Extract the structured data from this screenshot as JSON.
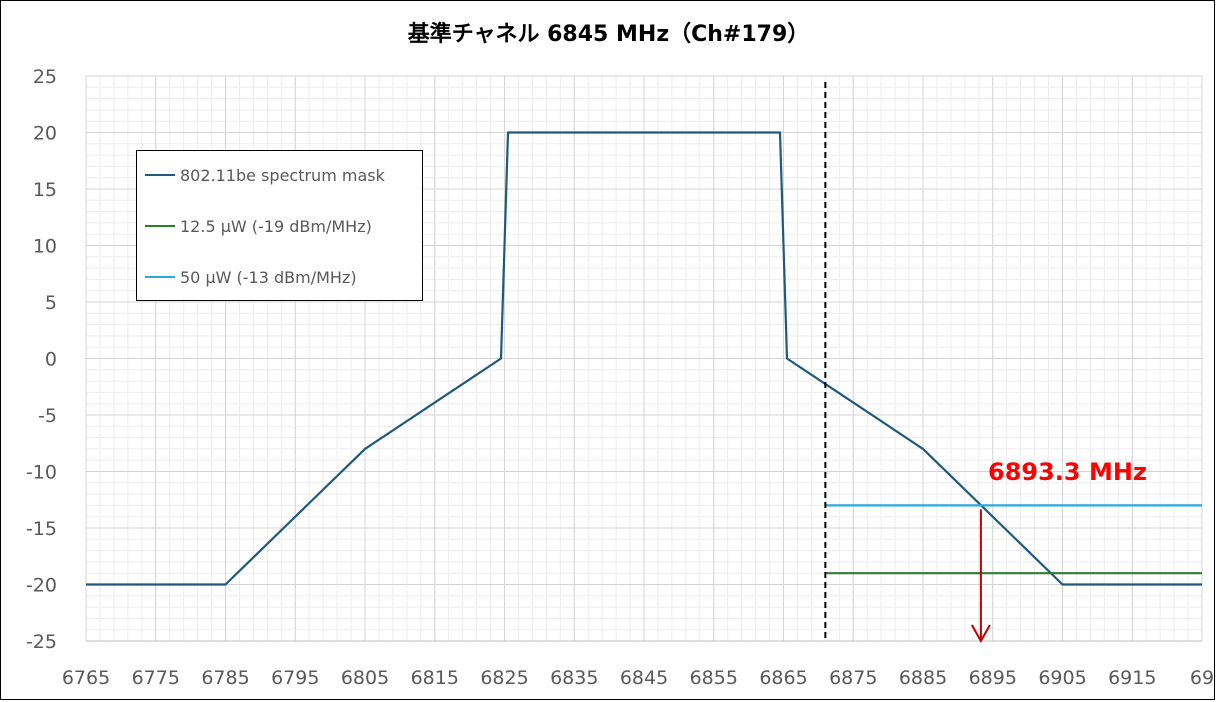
{
  "chart_data": {
    "type": "line",
    "title": "基準チャネル 6845 MHz（Ch#179）",
    "xlabel": "",
    "ylabel": "",
    "xlim": [
      6765,
      6925
    ],
    "ylim": [
      -25,
      25
    ],
    "x_ticks": [
      "6765",
      "6775",
      "6785",
      "6795",
      "6805",
      "6815",
      "6825",
      "6835",
      "6845",
      "6855",
      "6865",
      "6875",
      "6885",
      "6895",
      "6905",
      "6915",
      "69"
    ],
    "y_ticks": [
      "25",
      "20",
      "15",
      "10",
      "5",
      "0",
      "-5",
      "-10",
      "-15",
      "-20",
      "-25"
    ],
    "grid": true,
    "legend_position": "upper-left",
    "series": [
      {
        "name": "802.11be spectrum mask",
        "color": "#1f5a7e",
        "points": [
          [
            6765,
            -20
          ],
          [
            6785,
            -20
          ],
          [
            6805,
            -8
          ],
          [
            6824.5,
            0
          ],
          [
            6825.5,
            20
          ],
          [
            6864.5,
            20
          ],
          [
            6865.5,
            0
          ],
          [
            6885,
            -8
          ],
          [
            6905,
            -20
          ],
          [
            6925,
            -20
          ]
        ]
      },
      {
        "name": "12.5 μW (-19 dBm/MHz)",
        "color": "#2e7d32",
        "points": [
          [
            6871,
            -19
          ],
          [
            6925,
            -19
          ]
        ]
      },
      {
        "name": "50 μW (-13 dBm/MHz)",
        "color": "#27a9e1",
        "points": [
          [
            6871,
            -13
          ],
          [
            6925,
            -13
          ]
        ]
      }
    ],
    "reference_line": {
      "x": 6871,
      "style": "dashed",
      "color": "#000000"
    },
    "annotation": {
      "text": "6893.3 MHz",
      "x": 6893.3,
      "y_from": -13,
      "y_to": -25,
      "color": "#ff0000",
      "arrow_color": "#c00000"
    }
  }
}
